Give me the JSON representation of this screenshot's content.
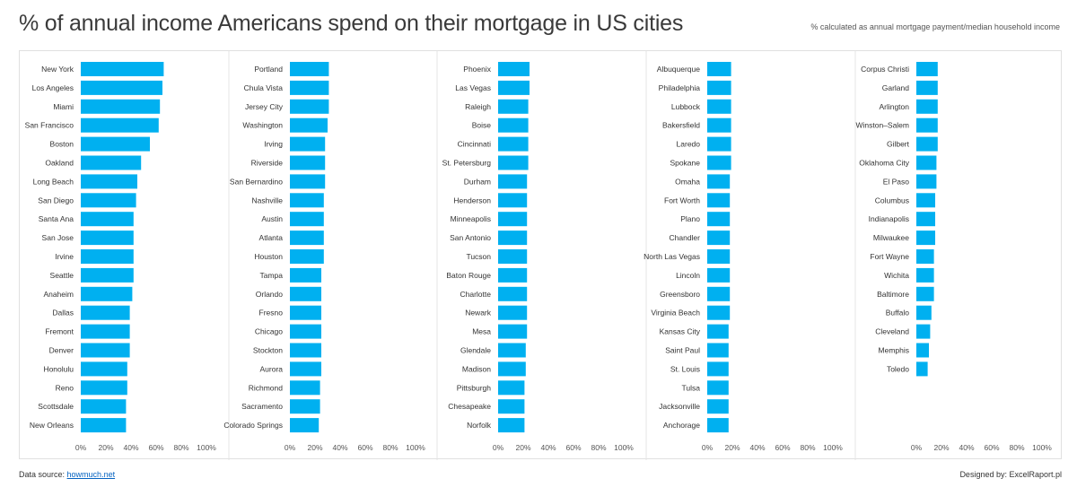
{
  "title": "% of annual income Americans spend on their mortgage in US cities",
  "subtitle": "% calculated as annual mortgage payment/median household income",
  "footer": {
    "source_label": "Data source:",
    "source_link": "howmuch.net",
    "designer": "Designed by: ExcelRaport.pl"
  },
  "colors": {
    "bar": "#00b0f0",
    "divider": "#e5e5e5"
  },
  "chart_data": [
    {
      "type": "bar",
      "orientation": "horizontal",
      "xlim": [
        0,
        100
      ],
      "ticks": [
        "0%",
        "20%",
        "40%",
        "60%",
        "80%",
        "100%"
      ],
      "categories": [
        "New York",
        "Los Angeles",
        "Miami",
        "San Francisco",
        "Boston",
        "Oakland",
        "Long Beach",
        "San Diego",
        "Santa Ana",
        "San Jose",
        "Irvine",
        "Seattle",
        "Anaheim",
        "Dallas",
        "Fremont",
        "Denver",
        "Honolulu",
        "Reno",
        "Scottsdale",
        "New Orleans"
      ],
      "values": [
        66,
        65,
        63,
        62,
        55,
        48,
        45,
        44,
        42,
        42,
        42,
        42,
        41,
        39,
        39,
        39,
        37,
        37,
        36,
        36
      ]
    },
    {
      "type": "bar",
      "orientation": "horizontal",
      "xlim": [
        0,
        100
      ],
      "ticks": [
        "0%",
        "20%",
        "40%",
        "60%",
        "80%",
        "100%"
      ],
      "categories": [
        "Portland",
        "Chula Vista",
        "Jersey City",
        "Washington",
        "Irving",
        "Riverside",
        "San Bernardino",
        "Nashville",
        "Austin",
        "Atlanta",
        "Houston",
        "Tampa",
        "Orlando",
        "Fresno",
        "Chicago",
        "Stockton",
        "Aurora",
        "Richmond",
        "Sacramento",
        "Colorado Springs"
      ],
      "values": [
        31,
        31,
        31,
        30,
        28,
        28,
        28,
        27,
        27,
        27,
        27,
        25,
        25,
        25,
        25,
        25,
        25,
        24,
        24,
        23
      ]
    },
    {
      "type": "bar",
      "orientation": "horizontal",
      "xlim": [
        0,
        100
      ],
      "ticks": [
        "0%",
        "20%",
        "40%",
        "60%",
        "80%",
        "100%"
      ],
      "categories": [
        "Phoenix",
        "Las Vegas",
        "Raleigh",
        "Boise",
        "Cincinnati",
        "St. Petersburg",
        "Durham",
        "Henderson",
        "Minneapolis",
        "San Antonio",
        "Tucson",
        "Baton Rouge",
        "Charlotte",
        "Newark",
        "Mesa",
        "Glendale",
        "Madison",
        "Pittsburgh",
        "Chesapeake",
        "Norfolk"
      ],
      "values": [
        25,
        25,
        24,
        24,
        24,
        24,
        23,
        23,
        23,
        23,
        23,
        23,
        23,
        23,
        23,
        22,
        22,
        21,
        21,
        21
      ]
    },
    {
      "type": "bar",
      "orientation": "horizontal",
      "xlim": [
        0,
        100
      ],
      "ticks": [
        "0%",
        "20%",
        "40%",
        "60%",
        "80%",
        "100%"
      ],
      "categories": [
        "Albuquerque",
        "Philadelphia",
        "Lubbock",
        "Bakersfield",
        "Laredo",
        "Spokane",
        "Omaha",
        "Fort Worth",
        "Plano",
        "Chandler",
        "North Las Vegas",
        "Lincoln",
        "Greensboro",
        "Virginia Beach",
        "Kansas City",
        "Saint Paul",
        "St. Louis",
        "Tulsa",
        "Jacksonville",
        "Anchorage"
      ],
      "values": [
        19,
        19,
        19,
        19,
        19,
        19,
        18,
        18,
        18,
        18,
        18,
        18,
        18,
        18,
        17,
        17,
        17,
        17,
        17,
        17
      ]
    },
    {
      "type": "bar",
      "orientation": "horizontal",
      "xlim": [
        0,
        100
      ],
      "ticks": [
        "0%",
        "20%",
        "40%",
        "60%",
        "80%",
        "100%"
      ],
      "categories": [
        "Corpus Christi",
        "Garland",
        "Arlington",
        "Winston–Salem",
        "Gilbert",
        "Oklahoma City",
        "El Paso",
        "Columbus",
        "Indianapolis",
        "Milwaukee",
        "Fort Wayne",
        "Wichita",
        "Baltimore",
        "Buffalo",
        "Cleveland",
        "Memphis",
        "Toledo"
      ],
      "values": [
        17,
        17,
        17,
        17,
        17,
        16,
        16,
        15,
        15,
        15,
        14,
        14,
        14,
        12,
        11,
        10,
        9
      ]
    }
  ]
}
